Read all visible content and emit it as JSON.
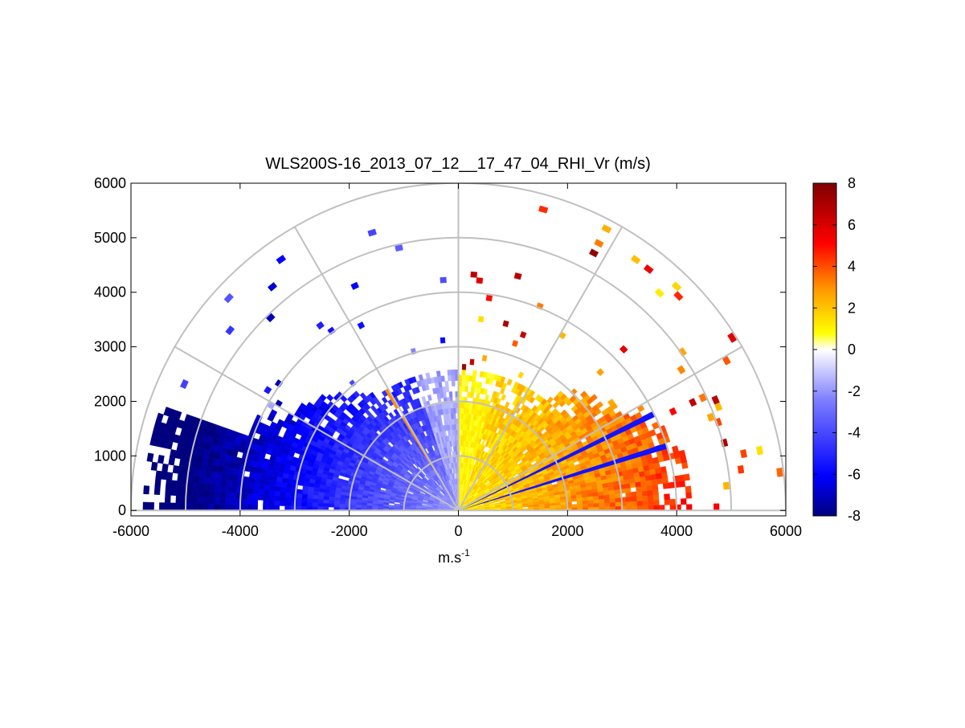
{
  "chart_data": {
    "type": "heatmap",
    "subtype": "polar-rhi-scan",
    "title": "WLS200S-16_2013_07_12__17_47_04_RHI_Vr (m/s)",
    "xlabel": "m.s",
    "xlabel_superscript": "-1",
    "ylabel": "",
    "xlim": [
      -6000,
      6000
    ],
    "ylim": [
      -100,
      6000
    ],
    "x_ticks": [
      -6000,
      -4000,
      -2000,
      0,
      2000,
      4000,
      6000
    ],
    "y_ticks": [
      0,
      1000,
      2000,
      3000,
      4000,
      5000,
      6000
    ],
    "range_rings": [
      1000,
      2000,
      3000,
      4000,
      5000,
      6000
    ],
    "spokes_deg": [
      0,
      30,
      60,
      90,
      120,
      150,
      180
    ],
    "grid": true,
    "colorbar": {
      "label": "",
      "min": -8,
      "max": 8,
      "ticks": [
        -8,
        -6,
        -4,
        -2,
        0,
        2,
        4,
        6,
        8
      ],
      "colormap": [
        "#00007f",
        "#0000ff",
        "#7f7fff",
        "#ffffff",
        "#ffff00",
        "#ff7f00",
        "#ff0000",
        "#7f0000"
      ]
    },
    "observed_pattern": {
      "left_half_velocity": "negative (-2 to -6 m/s)",
      "right_half_velocity": "positive (+1 to +6 m/s)",
      "dense_data_max_range_m": 5000,
      "elevation_range_deg": [
        0,
        180
      ]
    }
  }
}
